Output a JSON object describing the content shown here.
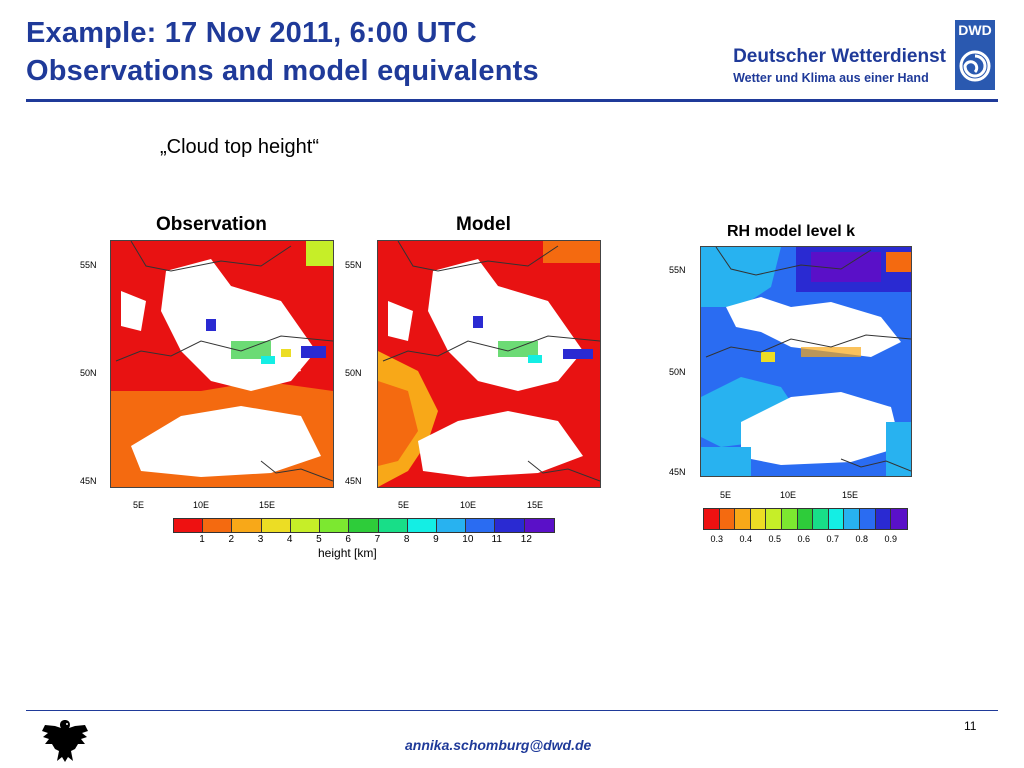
{
  "header": {
    "title_line1": "Example: 17 Nov 2011, 6:00 UTC",
    "title_line2": "Observations and model equivalents",
    "org_name": "Deutscher Wetterdienst",
    "org_tagline": "Wetter und Klima aus einer Hand",
    "logo_label": "DWD"
  },
  "subtitle": "„Cloud top height“",
  "panels": {
    "observation": {
      "title": "Observation"
    },
    "model": {
      "title": "Model"
    },
    "rh": {
      "title": "RH model level k"
    }
  },
  "axes": {
    "lat_ticks": [
      "55N",
      "50N",
      "45N"
    ],
    "lon_ticks": [
      "5E",
      "10E",
      "15E"
    ]
  },
  "colorbar_height": {
    "colors": [
      "#ee1111",
      "#f46a10",
      "#f8a818",
      "#ecdd24",
      "#c6ee28",
      "#7ce830",
      "#2ecc3a",
      "#18de88",
      "#14eee4",
      "#28b2f0",
      "#2a6cf2",
      "#2a2ad2",
      "#5a10c8"
    ],
    "labels": [
      "1",
      "2",
      "3",
      "4",
      "5",
      "6",
      "7",
      "8",
      "9",
      "10",
      "11",
      "12"
    ],
    "title": "height [km]"
  },
  "colorbar_rh": {
    "colors": [
      "#ee1111",
      "#f46a10",
      "#f8a818",
      "#ecdd24",
      "#c6ee28",
      "#7ce830",
      "#2ecc3a",
      "#18de88",
      "#14eee4",
      "#28b2f0",
      "#2a6cf2",
      "#2a2ad2",
      "#5a10c8"
    ],
    "labels": [
      "0.3",
      "0.4",
      "0.5",
      "0.6",
      "0.7",
      "0.8",
      "0.9"
    ]
  },
  "footer": {
    "email": "annika.schomburg@dwd.de",
    "page_number": "11"
  },
  "colors": {
    "brand_blue": "#1f3a99",
    "logo_blue": "#2a59b0"
  }
}
